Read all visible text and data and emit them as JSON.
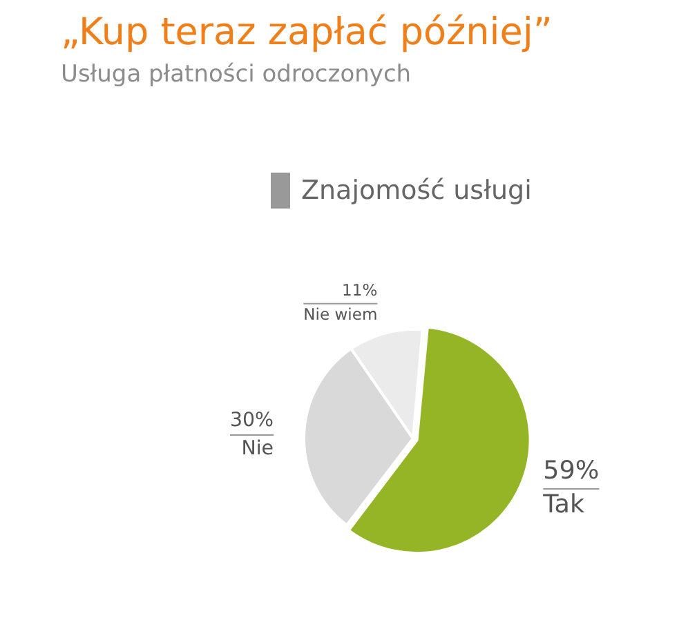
{
  "chart_data": {
    "type": "pie",
    "title": "„Kup teraz zapłać później”",
    "subtitle": "Usługa płatności odroczonych",
    "legend_title": "Znajomość usługi",
    "categories": [
      "Tak",
      "Nie",
      "Nie wiem"
    ],
    "values": [
      59,
      30,
      11
    ],
    "value_labels": [
      "59%",
      "30%",
      "11%"
    ],
    "colors": [
      "#95b526",
      "#d9d9d9",
      "#ebebeb"
    ]
  }
}
